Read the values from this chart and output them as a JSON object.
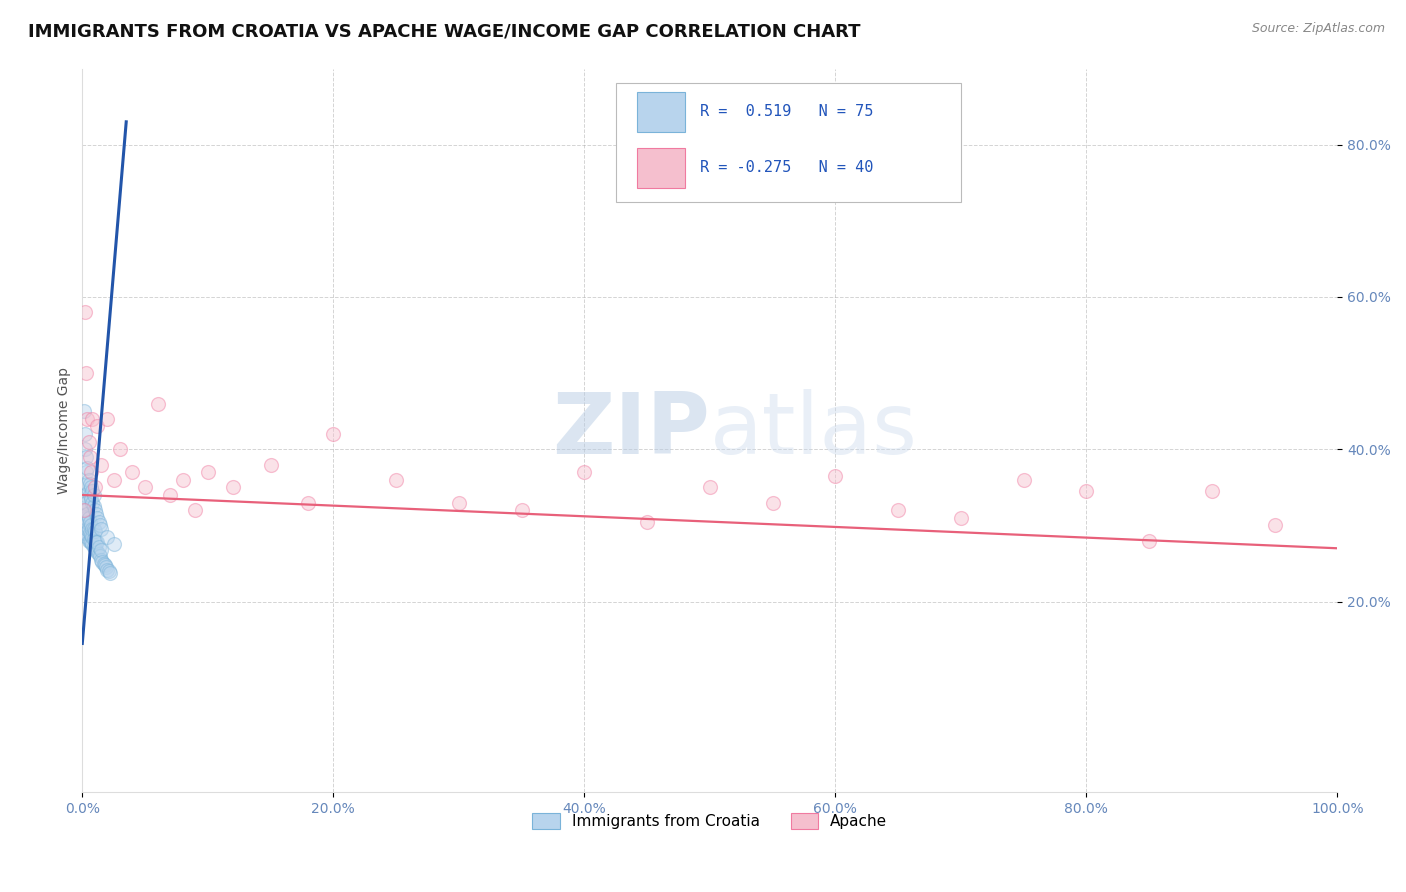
{
  "title": "IMMIGRANTS FROM CROATIA VS APACHE WAGE/INCOME GAP CORRELATION CHART",
  "source_text": "Source: ZipAtlas.com",
  "ylabel": "Wage/Income Gap",
  "xlim": [
    0.0,
    1.0
  ],
  "ylim": [
    -0.05,
    0.9
  ],
  "xticks": [
    0.0,
    0.2,
    0.4,
    0.6,
    0.8,
    1.0
  ],
  "xticklabels": [
    "0.0%",
    "20.0%",
    "40.0%",
    "60.0%",
    "80.0%",
    "100.0%"
  ],
  "yticks": [
    0.2,
    0.4,
    0.6,
    0.8
  ],
  "yticklabels": [
    "20.0%",
    "40.0%",
    "60.0%",
    "80.0%"
  ],
  "legend_bottom": [
    "Immigrants from Croatia",
    "Apache"
  ],
  "blue_scatter_x": [
    0.001,
    0.001,
    0.001,
    0.002,
    0.002,
    0.002,
    0.002,
    0.003,
    0.003,
    0.003,
    0.003,
    0.003,
    0.004,
    0.004,
    0.004,
    0.004,
    0.005,
    0.005,
    0.005,
    0.006,
    0.006,
    0.006,
    0.007,
    0.007,
    0.007,
    0.008,
    0.008,
    0.008,
    0.009,
    0.009,
    0.009,
    0.01,
    0.01,
    0.01,
    0.011,
    0.011,
    0.012,
    0.012,
    0.013,
    0.013,
    0.014,
    0.015,
    0.015,
    0.016,
    0.017,
    0.018,
    0.019,
    0.02,
    0.021,
    0.022,
    0.001,
    0.002,
    0.002,
    0.003,
    0.003,
    0.004,
    0.004,
    0.005,
    0.005,
    0.006,
    0.006,
    0.007,
    0.007,
    0.008,
    0.008,
    0.009,
    0.009,
    0.01,
    0.011,
    0.012,
    0.013,
    0.014,
    0.015,
    0.02,
    0.025
  ],
  "blue_scatter_y": [
    0.29,
    0.31,
    0.33,
    0.29,
    0.31,
    0.32,
    0.34,
    0.29,
    0.3,
    0.31,
    0.32,
    0.33,
    0.285,
    0.295,
    0.305,
    0.315,
    0.28,
    0.295,
    0.31,
    0.28,
    0.29,
    0.305,
    0.278,
    0.288,
    0.3,
    0.275,
    0.285,
    0.295,
    0.272,
    0.282,
    0.295,
    0.27,
    0.28,
    0.293,
    0.268,
    0.278,
    0.265,
    0.278,
    0.262,
    0.272,
    0.26,
    0.255,
    0.268,
    0.252,
    0.25,
    0.248,
    0.245,
    0.242,
    0.24,
    0.238,
    0.45,
    0.4,
    0.42,
    0.37,
    0.39,
    0.355,
    0.375,
    0.345,
    0.36,
    0.34,
    0.355,
    0.335,
    0.35,
    0.33,
    0.345,
    0.325,
    0.34,
    0.32,
    0.315,
    0.31,
    0.305,
    0.3,
    0.295,
    0.285,
    0.275
  ],
  "pink_scatter_x": [
    0.001,
    0.002,
    0.003,
    0.004,
    0.005,
    0.006,
    0.007,
    0.008,
    0.01,
    0.012,
    0.015,
    0.02,
    0.025,
    0.03,
    0.04,
    0.05,
    0.06,
    0.07,
    0.08,
    0.09,
    0.1,
    0.12,
    0.15,
    0.18,
    0.2,
    0.25,
    0.3,
    0.35,
    0.4,
    0.45,
    0.5,
    0.55,
    0.6,
    0.65,
    0.7,
    0.75,
    0.8,
    0.85,
    0.9,
    0.95
  ],
  "pink_scatter_y": [
    0.32,
    0.58,
    0.5,
    0.44,
    0.41,
    0.39,
    0.37,
    0.44,
    0.35,
    0.43,
    0.38,
    0.44,
    0.36,
    0.4,
    0.37,
    0.35,
    0.46,
    0.34,
    0.36,
    0.32,
    0.37,
    0.35,
    0.38,
    0.33,
    0.42,
    0.36,
    0.33,
    0.32,
    0.37,
    0.305,
    0.35,
    0.33,
    0.365,
    0.32,
    0.31,
    0.36,
    0.345,
    0.28,
    0.345,
    0.3
  ],
  "blue_line_x": [
    0.0,
    0.035
  ],
  "blue_line_y": [
    0.145,
    0.83
  ],
  "pink_line_x": [
    0.0,
    1.0
  ],
  "pink_line_y": [
    0.34,
    0.27
  ],
  "scatter_size": 100,
  "scatter_alpha": 0.45,
  "blue_color": "#7ab3d9",
  "pink_color": "#f07aa0",
  "blue_fill": "#b8d4ed",
  "pink_fill": "#f5bfce",
  "line_blue": "#2255aa",
  "line_pink": "#e8607a",
  "grid_color": "#aaaaaa",
  "background_color": "#ffffff",
  "watermark_zip": "ZIP",
  "watermark_atlas": "atlas",
  "title_fontsize": 13,
  "axis_label_fontsize": 10,
  "tick_fontsize": 10,
  "legend_r1": "R =  0.519   N = 75",
  "legend_r2": "R = -0.275   N = 40",
  "legend_r_color": "#2255bb"
}
